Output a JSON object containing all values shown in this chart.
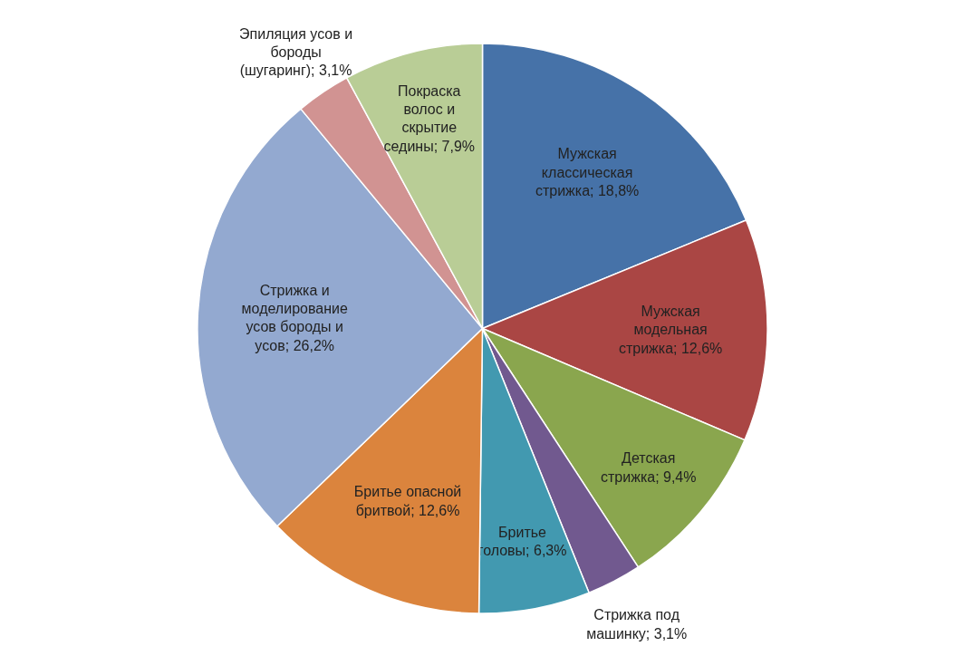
{
  "chart_data": {
    "type": "pie",
    "categories": [
      "Мужская классическая стрижка",
      "Мужская модельная стрижка",
      "Детская стрижка",
      "Стрижка под машинку",
      "Бритье головы",
      "Бритье опасной бритвой",
      "Стрижка и моделирование усов бороды и усов",
      "Эпиляция усов и бороды (шугаринг)",
      "Покраска волос и скрытие седины"
    ],
    "values": [
      18.8,
      12.6,
      9.4,
      3.1,
      6.3,
      12.6,
      26.2,
      3.1,
      7.9
    ],
    "value_labels": [
      "18,8%",
      "12,6%",
      "9,4%",
      "3,1%",
      "6,3%",
      "12,6%",
      "26,2%",
      "3,1%",
      "7,9%"
    ],
    "colors": [
      "#4672a8",
      "#aa4644",
      "#8aa64e",
      "#71598f",
      "#4299b0",
      "#db843d",
      "#93a9d0",
      "#d19392",
      "#b9cd96"
    ]
  }
}
